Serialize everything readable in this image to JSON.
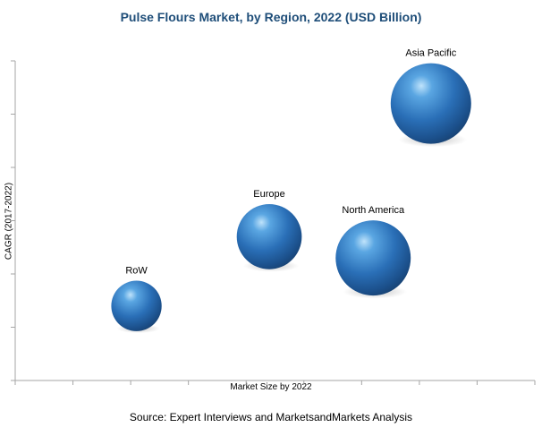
{
  "chart_data": {
    "type": "scatter",
    "title": "Pulse Flours Market, by Region, 2022 (USD Billion)",
    "xlabel": "Market Size by 2022",
    "ylabel": "CAGR (2017-2022)",
    "grid": false,
    "legend": "none",
    "series": [
      {
        "label": "RoW",
        "x": 2.1,
        "y": 1.4,
        "size": 0.45
      },
      {
        "label": "Europe",
        "x": 4.4,
        "y": 2.7,
        "size": 0.75
      },
      {
        "label": "North America",
        "x": 6.2,
        "y": 2.3,
        "size": 1.0
      },
      {
        "label": "Asia Pacific",
        "x": 7.2,
        "y": 5.2,
        "size": 1.15
      }
    ],
    "bubble_color": "#2e75b6"
  },
  "source": "Source: Expert Interviews and MarketsandMarkets Analysis"
}
